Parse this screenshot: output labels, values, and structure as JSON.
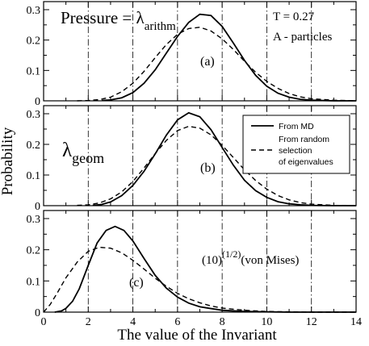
{
  "chart_data": {
    "type": "line",
    "ylabel": "Probability",
    "xlabel": "The value of the Invariant",
    "xlim": [
      0,
      14
    ],
    "xticks": [
      "0",
      "2",
      "4",
      "6",
      "8",
      "10",
      "12",
      "14"
    ],
    "grid_lines_x": [
      2,
      4,
      6,
      8,
      10,
      12
    ],
    "legend": {
      "placement": "top-right of panel (b)",
      "entries": [
        {
          "lines": [
            "From MD"
          ],
          "style": "solid"
        },
        {
          "lines": [
            "From random",
            "selection",
            "of eigenvalues"
          ],
          "style": "dashed"
        }
      ]
    },
    "panels": [
      {
        "label": "(a)",
        "annotation": {
          "main": "Pressure = λ",
          "sub": "arithm"
        },
        "extra_text": [
          "T = 0.27",
          "A - particles"
        ],
        "ylim": [
          0,
          0.3
        ],
        "yticks": [
          "0",
          "0.1",
          "0.2",
          "0.3"
        ],
        "series": [
          {
            "style": "solid",
            "x": [
              2.6,
              3.0,
              3.5,
              4.0,
              4.5,
              5.0,
              5.5,
              6.0,
              6.5,
              7.0,
              7.5,
              8.0,
              8.5,
              9.0,
              9.5,
              10.0,
              10.5,
              11.0,
              11.5,
              12.0,
              13.0,
              14.0
            ],
            "y": [
              0.001,
              0.003,
              0.01,
              0.027,
              0.058,
              0.102,
              0.157,
              0.212,
              0.258,
              0.285,
              0.281,
              0.245,
              0.19,
              0.133,
              0.084,
              0.048,
              0.025,
              0.012,
              0.005,
              0.002,
              0.0,
              0.0
            ]
          },
          {
            "style": "dashed",
            "x": [
              1.5,
              2.0,
              2.5,
              3.0,
              3.5,
              4.0,
              4.5,
              5.0,
              5.5,
              6.0,
              6.5,
              7.0,
              7.5,
              8.0,
              8.5,
              9.0,
              9.5,
              10.0,
              10.5,
              11.0,
              11.5,
              12.0,
              13.0,
              14.0
            ],
            "y": [
              0.0,
              0.001,
              0.004,
              0.012,
              0.03,
              0.058,
              0.097,
              0.142,
              0.185,
              0.219,
              0.238,
              0.242,
              0.23,
              0.204,
              0.169,
              0.13,
              0.094,
              0.064,
              0.041,
              0.024,
              0.013,
              0.007,
              0.002,
              0.0
            ]
          }
        ]
      },
      {
        "label": "(b)",
        "annotation": {
          "main": "λ",
          "sub": "geom"
        },
        "extra_text": [],
        "ylim": [
          0,
          0.3
        ],
        "yticks": [
          "0",
          "0.1",
          "0.2",
          "0.3"
        ],
        "series": [
          {
            "style": "solid",
            "x": [
              2.2,
              2.6,
              3.0,
              3.5,
              4.0,
              4.5,
              5.0,
              5.5,
              6.0,
              6.5,
              7.0,
              7.5,
              8.0,
              8.5,
              9.0,
              9.5,
              10.0,
              10.5,
              11.0,
              11.5,
              12.0,
              13.0,
              14.0
            ],
            "y": [
              0.001,
              0.004,
              0.012,
              0.033,
              0.066,
              0.112,
              0.169,
              0.23,
              0.28,
              0.303,
              0.29,
              0.248,
              0.19,
              0.132,
              0.083,
              0.049,
              0.027,
              0.013,
              0.006,
              0.003,
              0.001,
              0.0,
              0.0
            ]
          },
          {
            "style": "dashed",
            "x": [
              1.5,
              2.0,
              2.5,
              3.0,
              3.5,
              4.0,
              4.5,
              5.0,
              5.5,
              6.0,
              6.5,
              7.0,
              7.5,
              8.0,
              8.5,
              9.0,
              9.5,
              10.0,
              10.5,
              11.0,
              11.5,
              12.0,
              13.0,
              14.0
            ],
            "y": [
              0.001,
              0.003,
              0.009,
              0.022,
              0.045,
              0.079,
              0.123,
              0.17,
              0.213,
              0.245,
              0.259,
              0.253,
              0.231,
              0.197,
              0.157,
              0.117,
              0.082,
              0.054,
              0.033,
              0.019,
              0.01,
              0.005,
              0.001,
              0.0
            ]
          }
        ]
      },
      {
        "label": "(c)",
        "annotation": {
          "main": "(10)",
          "sup": "(1/2)",
          "tail": "(von Mises)"
        },
        "extra_text": [],
        "ylim": [
          0,
          0.3
        ],
        "yticks": [
          "0",
          "0.1",
          "0.2",
          "0.3"
        ],
        "series": [
          {
            "style": "solid",
            "x": [
              0.5,
              0.8,
              1.0,
              1.3,
              1.6,
              2.0,
              2.4,
              2.8,
              3.2,
              3.6,
              4.0,
              4.5,
              5.0,
              5.5,
              6.0,
              6.5,
              7.0,
              8.0,
              9.0,
              10.0,
              11.0,
              12.0,
              14.0
            ],
            "y": [
              0.0,
              0.004,
              0.012,
              0.035,
              0.075,
              0.15,
              0.222,
              0.262,
              0.275,
              0.262,
              0.228,
              0.172,
              0.118,
              0.077,
              0.048,
              0.029,
              0.017,
              0.006,
              0.002,
              0.001,
              0.0,
              0.0,
              0.0
            ]
          },
          {
            "style": "dashed",
            "x": [
              0.0,
              0.3,
              0.6,
              1.0,
              1.5,
              2.0,
              2.5,
              3.0,
              3.5,
              4.0,
              4.5,
              5.0,
              5.5,
              6.0,
              6.5,
              7.0,
              7.5,
              8.0,
              9.0,
              10.0,
              11.0,
              12.0,
              14.0
            ],
            "y": [
              0.0,
              0.025,
              0.06,
              0.11,
              0.16,
              0.195,
              0.208,
              0.205,
              0.19,
              0.166,
              0.138,
              0.109,
              0.083,
              0.06,
              0.043,
              0.03,
              0.02,
              0.013,
              0.006,
              0.002,
              0.001,
              0.0,
              0.0
            ]
          }
        ]
      }
    ]
  }
}
